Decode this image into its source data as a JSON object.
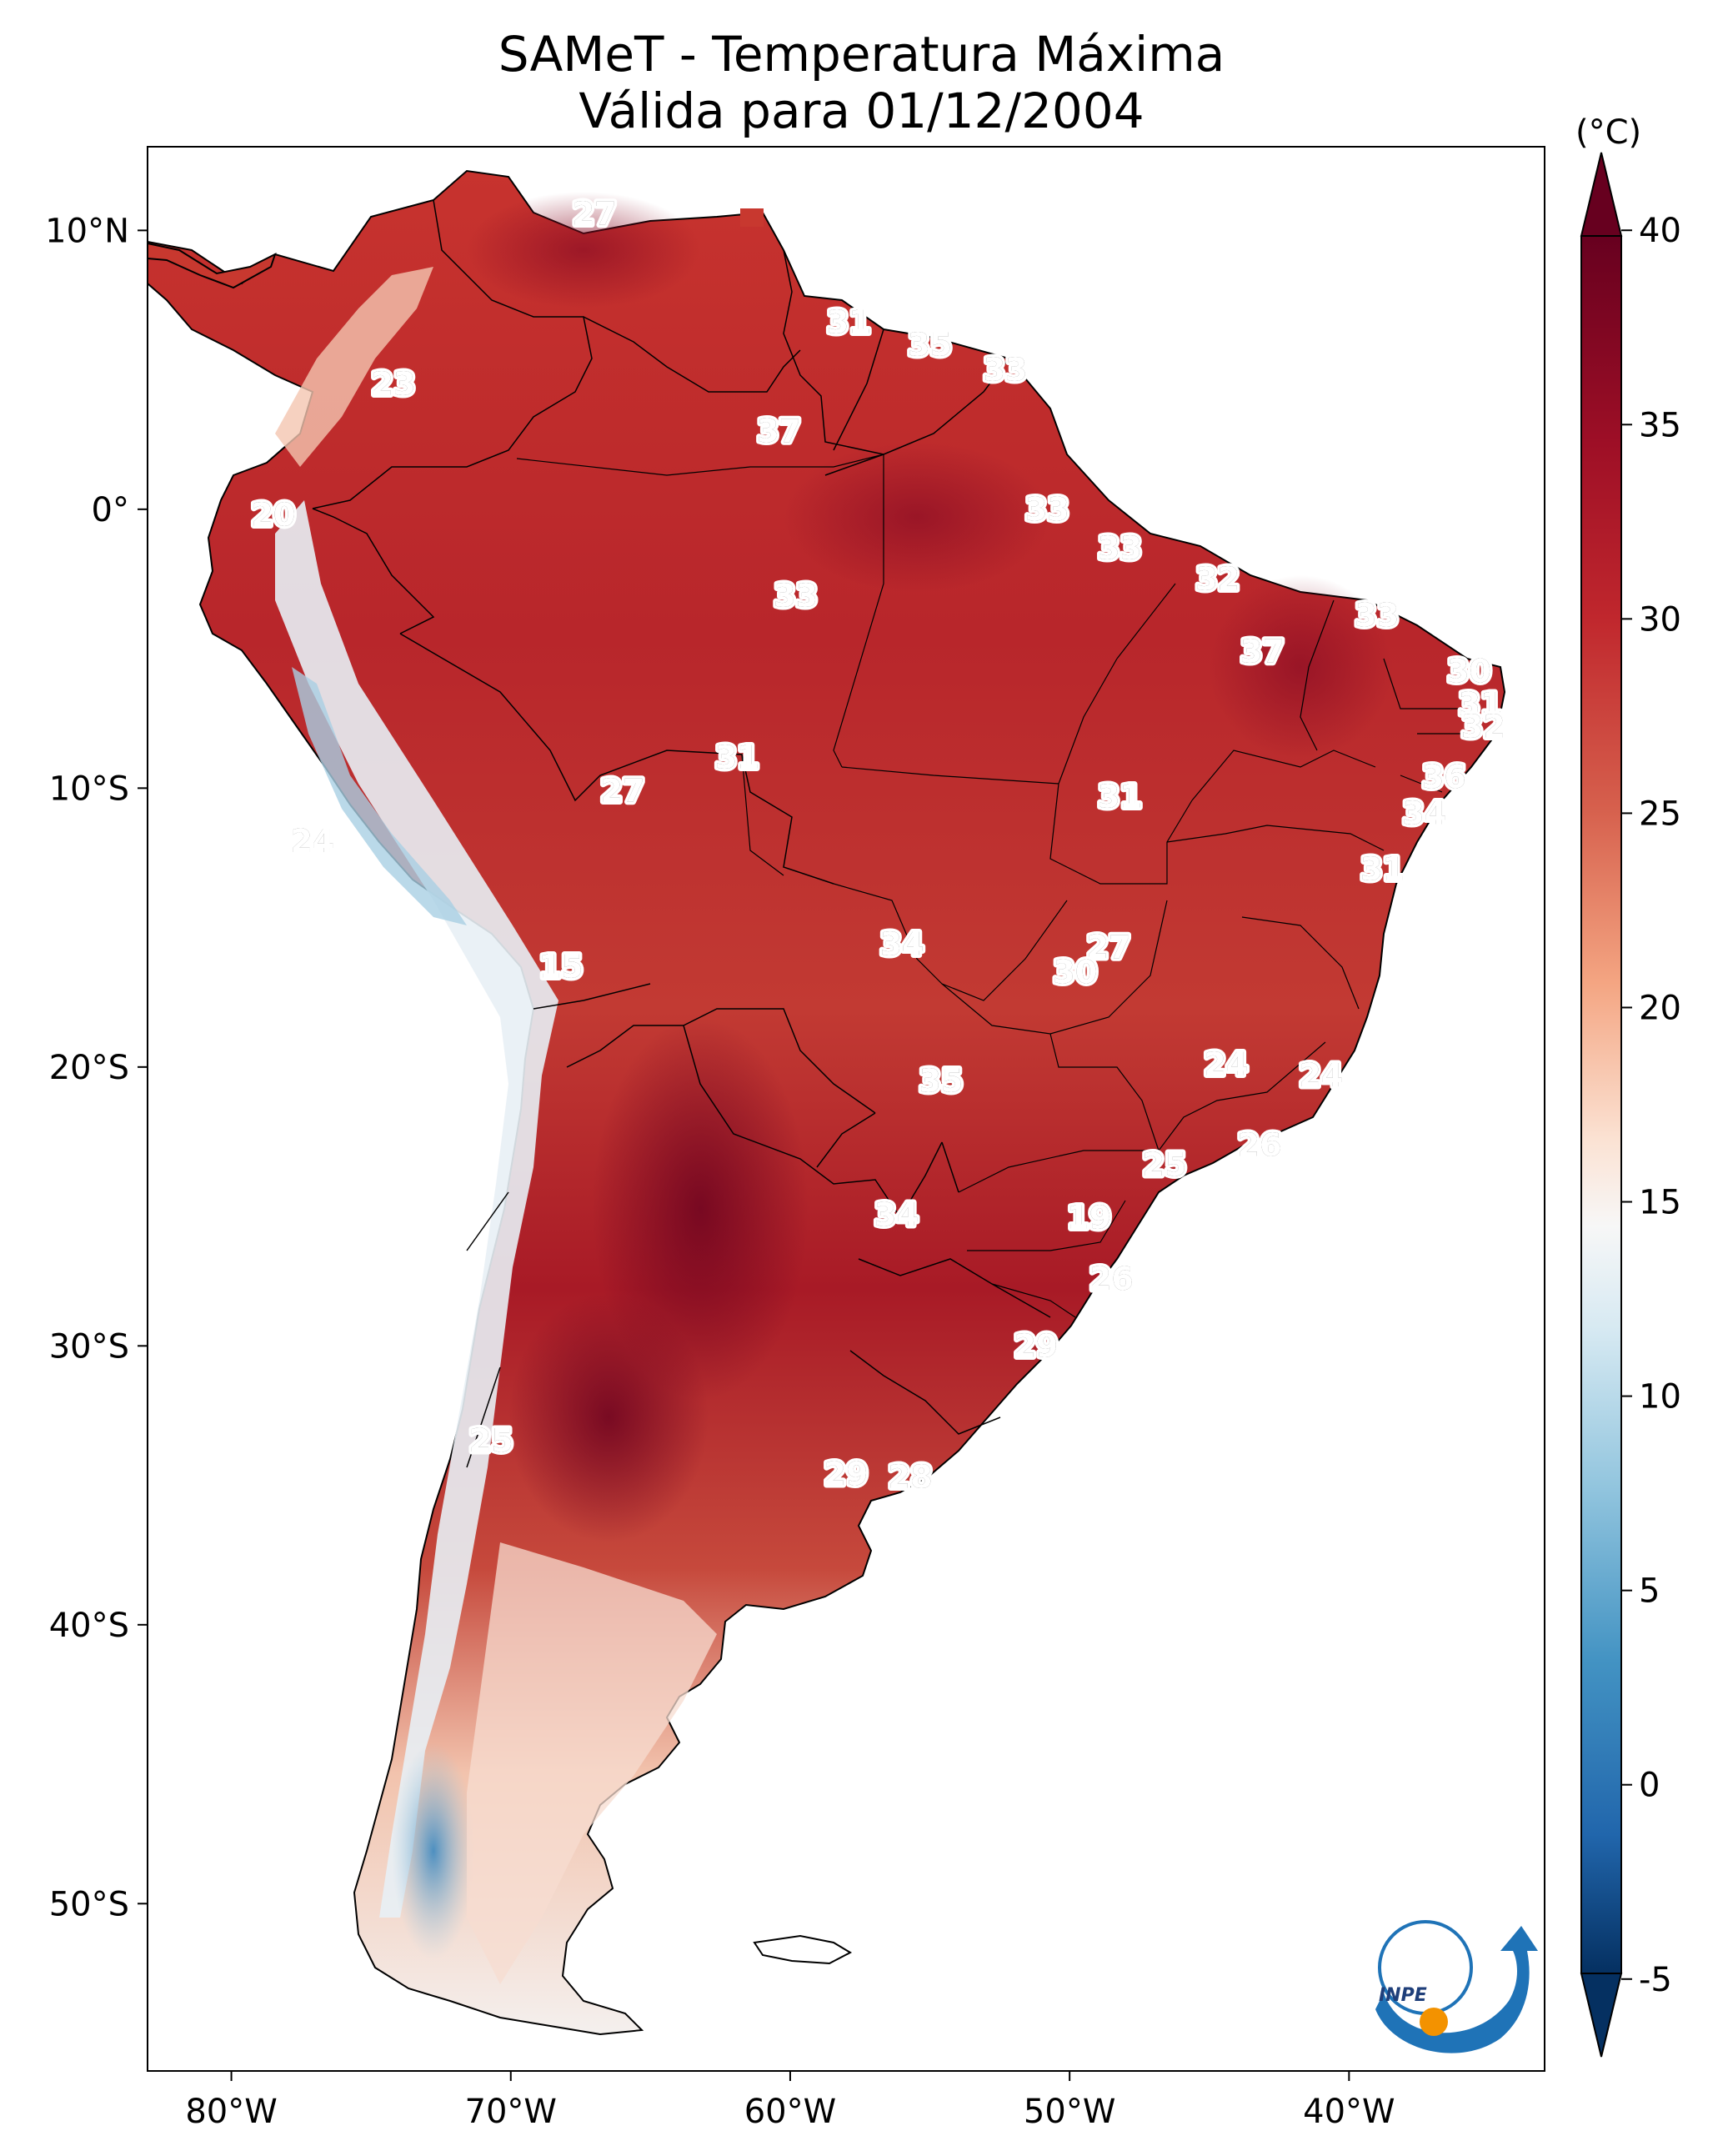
{
  "title_line1": "SAMeT - Temperatura Máxima",
  "title_line2": "Válida para 01/12/2004",
  "unit": "(°C)",
  "logo_text": "INPE",
  "colors": {
    "hot": "#67001f",
    "warm": "#b2182b",
    "mild": "#d6604d",
    "neutral": "#f7f7f7",
    "cool": "#92c5de",
    "cold": "#2166ac",
    "coldest": "#053061",
    "logo_blue": "#1f73b7",
    "logo_orange": "#f39200"
  },
  "colorbar": {
    "min": -7,
    "max": 42,
    "ticks": [
      {
        "value": 40,
        "label": "40"
      },
      {
        "value": 35,
        "label": "35"
      },
      {
        "value": 30,
        "label": "30"
      },
      {
        "value": 25,
        "label": "25"
      },
      {
        "value": 20,
        "label": "20"
      },
      {
        "value": 15,
        "label": "15"
      },
      {
        "value": 10,
        "label": "10"
      },
      {
        "value": 5,
        "label": "5"
      },
      {
        "value": 0,
        "label": "0"
      },
      {
        "value": -5,
        "label": "-5"
      }
    ]
  },
  "axes": {
    "lon_range": [
      -83,
      -33
    ],
    "lat_range": [
      -56,
      13
    ],
    "lon_ticks": [
      {
        "value": -80,
        "label": "80°W"
      },
      {
        "value": -70,
        "label": "70°W"
      },
      {
        "value": -60,
        "label": "60°W"
      },
      {
        "value": -50,
        "label": "50°W"
      },
      {
        "value": -40,
        "label": "40°W"
      }
    ],
    "lat_ticks": [
      {
        "value": 10,
        "label": "10°N"
      },
      {
        "value": 0,
        "label": "0°"
      },
      {
        "value": -10,
        "label": "10°S"
      },
      {
        "value": -20,
        "label": "20°S"
      },
      {
        "value": -30,
        "label": "30°S"
      },
      {
        "value": -40,
        "label": "40°S"
      },
      {
        "value": -50,
        "label": "50°S"
      }
    ]
  },
  "station_labels": [
    {
      "lon": -67.0,
      "lat": 10.6,
      "text": "27"
    },
    {
      "lon": -57.9,
      "lat": 6.7,
      "text": "31"
    },
    {
      "lon": -55.0,
      "lat": 5.9,
      "text": "35"
    },
    {
      "lon": -52.3,
      "lat": 5.0,
      "text": "33"
    },
    {
      "lon": -74.2,
      "lat": 4.5,
      "text": "23"
    },
    {
      "lon": -60.4,
      "lat": 2.8,
      "text": "37"
    },
    {
      "lon": -50.8,
      "lat": 0.0,
      "text": "33"
    },
    {
      "lon": -78.5,
      "lat": -0.2,
      "text": "20"
    },
    {
      "lon": -48.2,
      "lat": -1.4,
      "text": "33"
    },
    {
      "lon": -59.8,
      "lat": -3.1,
      "text": "33"
    },
    {
      "lon": -44.7,
      "lat": -2.5,
      "text": "32"
    },
    {
      "lon": -39.0,
      "lat": -3.8,
      "text": "33"
    },
    {
      "lon": -43.1,
      "lat": -5.1,
      "text": "37"
    },
    {
      "lon": -35.7,
      "lat": -5.8,
      "text": "30"
    },
    {
      "lon": -35.3,
      "lat": -7.0,
      "text": "31"
    },
    {
      "lon": -35.2,
      "lat": -7.8,
      "text": "32"
    },
    {
      "lon": -61.9,
      "lat": -8.9,
      "text": "31"
    },
    {
      "lon": -66.0,
      "lat": -10.1,
      "text": "27"
    },
    {
      "lon": -48.2,
      "lat": -10.3,
      "text": "31"
    },
    {
      "lon": -36.6,
      "lat": -9.6,
      "text": "36"
    },
    {
      "lon": -37.3,
      "lat": -10.9,
      "text": "34"
    },
    {
      "lon": -77.1,
      "lat": -11.9,
      "text": "24"
    },
    {
      "lon": -38.8,
      "lat": -12.9,
      "text": "31"
    },
    {
      "lon": -56.0,
      "lat": -15.6,
      "text": "34"
    },
    {
      "lon": -48.6,
      "lat": -15.7,
      "text": "27"
    },
    {
      "lon": -49.8,
      "lat": -16.6,
      "text": "30"
    },
    {
      "lon": -68.2,
      "lat": -16.4,
      "text": "15"
    },
    {
      "lon": -44.4,
      "lat": -19.9,
      "text": "24"
    },
    {
      "lon": -41.0,
      "lat": -20.3,
      "text": "24"
    },
    {
      "lon": -54.6,
      "lat": -20.5,
      "text": "35"
    },
    {
      "lon": -43.2,
      "lat": -22.8,
      "text": "26"
    },
    {
      "lon": -46.6,
      "lat": -23.5,
      "text": "25"
    },
    {
      "lon": -56.2,
      "lat": -25.3,
      "text": "34"
    },
    {
      "lon": -49.3,
      "lat": -25.4,
      "text": "19"
    },
    {
      "lon": -48.5,
      "lat": -27.6,
      "text": "26"
    },
    {
      "lon": -51.2,
      "lat": -30.0,
      "text": "29"
    },
    {
      "lon": -70.7,
      "lat": -33.4,
      "text": "25"
    },
    {
      "lon": -58.0,
      "lat": -34.6,
      "text": "29"
    },
    {
      "lon": -55.7,
      "lat": -34.7,
      "text": "28"
    }
  ]
}
